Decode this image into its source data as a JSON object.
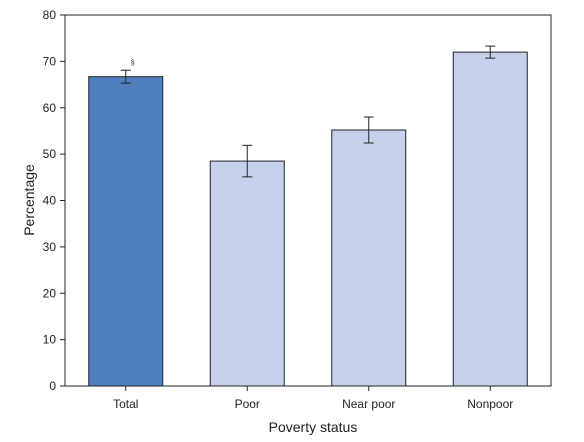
{
  "chart_data": {
    "type": "bar",
    "title": "",
    "xlabel": "Poverty status",
    "ylabel": "Percentage",
    "ylim": [
      0,
      80
    ],
    "yticks": [
      0,
      10,
      20,
      30,
      40,
      50,
      60,
      70,
      80
    ],
    "grid": false,
    "categories": [
      "Total",
      "Poor",
      "Near poor",
      "Nonpoor"
    ],
    "values": [
      66.7,
      48.5,
      55.2,
      72.0
    ],
    "error_low": [
      65.3,
      45.1,
      52.4,
      70.7
    ],
    "error_high": [
      68.1,
      51.9,
      58.0,
      73.3
    ],
    "annotations": [
      "§",
      "",
      "",
      ""
    ],
    "colors": {
      "highlight": "#4f7ebf",
      "default": "#c5d0ea",
      "bar_stroke": "#222222",
      "axis": "#222222"
    },
    "highlight_index": 0
  }
}
